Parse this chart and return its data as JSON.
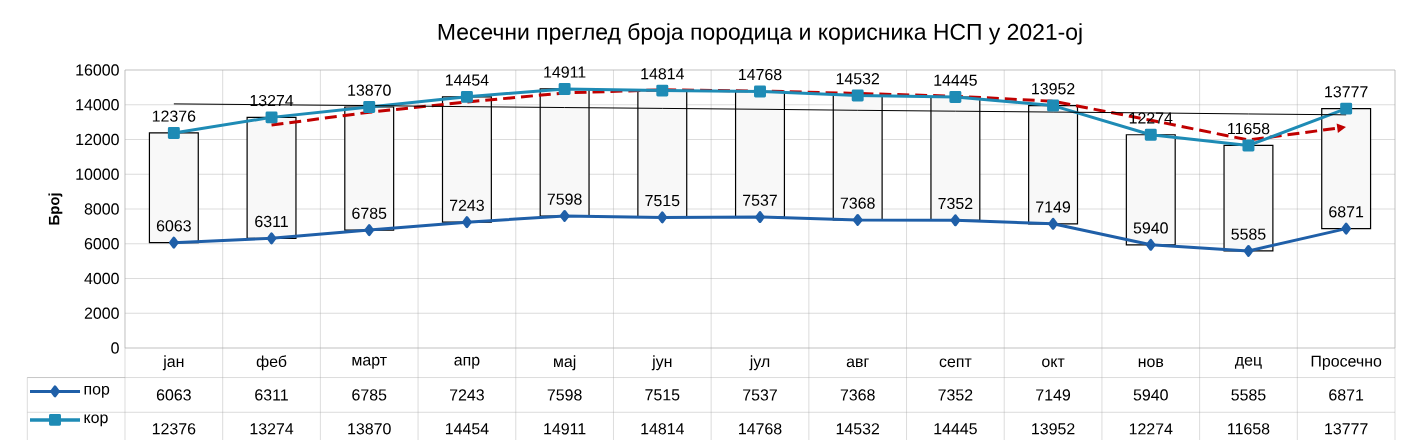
{
  "chart_data": {
    "type": "line",
    "title": "Месечни преглед броја породица и корисника НСП у 2021-ој",
    "ylabel": "Број",
    "categories": [
      "јан",
      "феб",
      "март",
      "апр",
      "мај",
      "јун",
      "јул",
      "авг",
      "септ",
      "окт",
      "нов",
      "дец",
      "Просечно"
    ],
    "series": [
      {
        "type": "bar",
        "color": "#f8f8f8",
        "base": [
          6063,
          6311,
          6785,
          7243,
          7598,
          7515,
          7537,
          7368,
          7352,
          7149,
          5940,
          5585,
          6871
        ],
        "values": [
          6313,
          6963,
          7085,
          7211,
          7313,
          7299,
          7231,
          7164,
          7093,
          6803,
          6334,
          6073,
          6906
        ]
      },
      {
        "type": "line",
        "color": "#c00000",
        "line_style": "dashed",
        "values": [
          null,
          12830,
          13570,
          14160,
          14680,
          14860,
          14790,
          14650,
          14490,
          14200,
          13110,
          11970,
          12720
        ]
      },
      {
        "type": "line",
        "name": "пор",
        "color": "#1f5fa8",
        "marker": "diamond",
        "values": [
          6063,
          6311,
          6785,
          7243,
          7598,
          7515,
          7537,
          7368,
          7352,
          7149,
          5940,
          5585,
          6871
        ],
        "value_labels": [
          "6063",
          "6311",
          "6785",
          "7243",
          "7598",
          "7515",
          "7537",
          "7368",
          "7352",
          "7149",
          "5940",
          "5585",
          "6871"
        ]
      },
      {
        "type": "line",
        "name": "кор",
        "color": "#1e8bb5",
        "marker": "square",
        "values": [
          12376,
          13274,
          13870,
          14454,
          14911,
          14814,
          14768,
          14532,
          14445,
          13952,
          12274,
          11658,
          13777
        ],
        "value_labels": [
          "12376",
          "13274",
          "13870",
          "14454",
          "14911",
          "14814",
          "14768",
          "14532",
          "14445",
          "13952",
          "12274",
          "11658",
          "13777"
        ]
      },
      {
        "color": "#000000",
        "values": [
          14050,
          14000,
          13950,
          13890,
          13840,
          13790,
          13740,
          13680,
          13630,
          13580,
          13530,
          13470,
          13420
        ]
      }
    ],
    "ylim": [
      0,
      16000
    ],
    "yticks": [
      0,
      2000,
      4000,
      6000,
      8000,
      10000,
      12000,
      14000,
      16000
    ],
    "grid": "y",
    "legend": "bottom"
  }
}
